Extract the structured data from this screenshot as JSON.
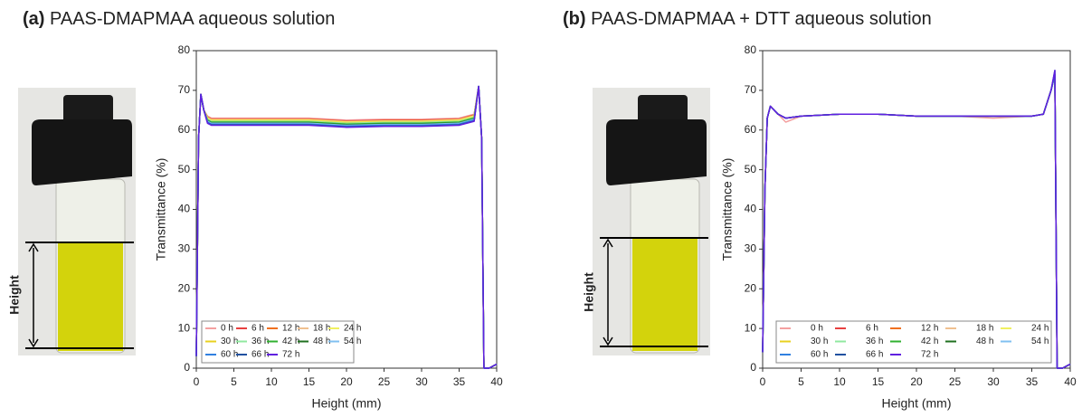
{
  "chart_data": [
    {
      "type": "line",
      "panel_label": "(a)",
      "title": "PAAS-DMAPMAA aqueous solution",
      "photo_label": "Height",
      "x_label": "Height (mm)",
      "y_label": "Transmittance (%)",
      "xlim": [
        0,
        40
      ],
      "ylim": [
        0,
        80
      ],
      "xticks": [
        0,
        5,
        10,
        15,
        20,
        25,
        30,
        35,
        40
      ],
      "yticks": [
        0,
        10,
        20,
        30,
        40,
        50,
        60,
        70,
        80
      ],
      "x": [
        0,
        0.3,
        0.6,
        1,
        1.5,
        2,
        5,
        10,
        15,
        20,
        25,
        30,
        35,
        37,
        37.6,
        38,
        38.3,
        39,
        40
      ],
      "series": [
        {
          "name": "0 h",
          "color": "#f4a0a0",
          "values": [
            3,
            58,
            69,
            65,
            63.5,
            63,
            63,
            63,
            63,
            62.5,
            62.7,
            62.7,
            63,
            64,
            71,
            58,
            0,
            0,
            1
          ]
        },
        {
          "name": "6 h",
          "color": "#e84040",
          "values": [
            3,
            58,
            69,
            65,
            63.3,
            62.8,
            62.8,
            62.8,
            62.8,
            62.3,
            62.5,
            62.5,
            62.8,
            63.8,
            71,
            58,
            0,
            0,
            1
          ]
        },
        {
          "name": "12 h",
          "color": "#f07020",
          "values": [
            3,
            58,
            69,
            65,
            63.2,
            62.7,
            62.7,
            62.7,
            62.7,
            62.2,
            62.4,
            62.4,
            62.7,
            63.7,
            71,
            58,
            0,
            0,
            1
          ]
        },
        {
          "name": "18 h",
          "color": "#f0c090",
          "values": [
            3,
            58,
            69,
            65,
            63.1,
            62.6,
            62.6,
            62.6,
            62.6,
            62.1,
            62.3,
            62.3,
            62.6,
            63.6,
            71,
            58,
            0,
            0,
            1
          ]
        },
        {
          "name": "24 h",
          "color": "#f0f060",
          "values": [
            3,
            58,
            69,
            65,
            63,
            62.5,
            62.5,
            62.5,
            62.5,
            62,
            62.2,
            62.2,
            62.5,
            63.5,
            71,
            58,
            0,
            0,
            1
          ]
        },
        {
          "name": "30 h",
          "color": "#e8d020",
          "values": [
            3,
            58,
            69,
            65,
            62.8,
            62.3,
            62.3,
            62.3,
            62.3,
            61.8,
            62,
            62,
            62.3,
            63.3,
            71,
            58,
            0,
            0,
            1
          ]
        },
        {
          "name": "36 h",
          "color": "#90e8a0",
          "values": [
            3,
            58,
            69,
            65,
            62.7,
            62.2,
            62.2,
            62.2,
            62.2,
            61.7,
            61.9,
            61.9,
            62.2,
            63.2,
            71,
            58,
            0,
            0,
            1
          ]
        },
        {
          "name": "42 h",
          "color": "#30b030",
          "values": [
            3,
            58,
            69,
            65,
            62.5,
            62,
            62,
            62,
            62,
            61.5,
            61.7,
            61.7,
            62,
            63,
            71,
            58,
            0,
            0,
            1
          ]
        },
        {
          "name": "48 h",
          "color": "#207020",
          "values": [
            3,
            58,
            69,
            65,
            62.3,
            61.8,
            61.8,
            61.8,
            61.8,
            61.3,
            61.5,
            61.5,
            61.8,
            62.8,
            71,
            58,
            0,
            0,
            1
          ]
        },
        {
          "name": "54 h",
          "color": "#80c0f0",
          "values": [
            3,
            58,
            69,
            65,
            62.2,
            61.7,
            61.7,
            61.7,
            61.7,
            61.2,
            61.4,
            61.4,
            61.7,
            62.7,
            71,
            58,
            0,
            0,
            1
          ]
        },
        {
          "name": "60 h",
          "color": "#3080e0",
          "values": [
            3,
            58,
            69,
            65,
            62,
            61.5,
            61.5,
            61.5,
            61.5,
            61,
            61.2,
            61.2,
            61.5,
            62.5,
            71,
            58,
            0,
            0,
            1
          ]
        },
        {
          "name": "66 h",
          "color": "#2050a0",
          "values": [
            3,
            58,
            69,
            65,
            61.8,
            61.3,
            61.3,
            61.3,
            61.3,
            60.8,
            61,
            61,
            61.3,
            62.3,
            71,
            58,
            0,
            0,
            1
          ]
        },
        {
          "name": "72 h",
          "color": "#6020e0",
          "values": [
            3,
            58,
            69,
            65,
            61.7,
            61.2,
            61.2,
            61.2,
            61.2,
            60.7,
            60.9,
            60.9,
            61.2,
            62.2,
            71,
            58,
            0,
            0,
            1
          ]
        }
      ]
    },
    {
      "type": "line",
      "panel_label": "(b)",
      "title": "PAAS-DMAPMAA + DTT aqueous solution",
      "photo_label": "Height",
      "x_label": "Height (mm)",
      "y_label": "Transmittance (%)",
      "xlim": [
        0,
        40
      ],
      "ylim": [
        0,
        80
      ],
      "xticks": [
        0,
        5,
        10,
        15,
        20,
        25,
        30,
        35,
        40
      ],
      "yticks": [
        0,
        10,
        20,
        30,
        40,
        50,
        60,
        70,
        80
      ],
      "x": [
        0,
        0.3,
        0.6,
        1,
        1.5,
        2,
        3,
        5,
        10,
        15,
        20,
        25,
        30,
        35,
        36.5,
        37.5,
        38,
        38.3,
        39,
        40
      ],
      "series": [
        {
          "name": "0 h",
          "color": "#f4a0a0",
          "values": [
            4,
            45,
            63,
            66,
            65,
            64,
            62,
            63.5,
            64,
            64,
            63.5,
            63.5,
            63,
            63.5,
            64,
            70,
            74,
            0,
            0,
            1
          ]
        },
        {
          "name": "6 h",
          "color": "#e84040",
          "values": [
            4,
            45,
            63,
            66,
            65,
            64,
            63,
            63.5,
            64,
            64,
            63.5,
            63.5,
            63.5,
            63.5,
            64,
            70,
            74,
            0,
            0,
            1
          ]
        },
        {
          "name": "12 h",
          "color": "#f07020",
          "values": [
            4,
            45,
            63,
            66,
            65,
            64,
            63,
            63.5,
            64,
            64,
            63.5,
            63.5,
            63.5,
            63.5,
            64,
            70,
            74,
            0,
            0,
            1
          ]
        },
        {
          "name": "18 h",
          "color": "#f0c090",
          "values": [
            4,
            45,
            63,
            66,
            65,
            64,
            63,
            63.5,
            64,
            64,
            63.5,
            63.5,
            63.5,
            63.5,
            64,
            70,
            74,
            0,
            0,
            1
          ]
        },
        {
          "name": "24 h",
          "color": "#f0f060",
          "values": [
            4,
            45,
            63,
            66,
            65,
            64,
            63,
            63.5,
            64,
            64,
            63.5,
            63.5,
            63.5,
            63.5,
            64,
            70,
            74,
            0,
            0,
            1
          ]
        },
        {
          "name": "30 h",
          "color": "#e8d020",
          "values": [
            4,
            45,
            63,
            66,
            65,
            64,
            63,
            63.5,
            64,
            64,
            63.5,
            63.5,
            63.5,
            63.5,
            64,
            70,
            74,
            0,
            0,
            1
          ]
        },
        {
          "name": "36 h",
          "color": "#90e8a0",
          "values": [
            4,
            45,
            63,
            66,
            65,
            64,
            63,
            63.5,
            64,
            64,
            63.5,
            63.5,
            63.5,
            63.5,
            64,
            70,
            74,
            0,
            0,
            1
          ]
        },
        {
          "name": "42 h",
          "color": "#30b030",
          "values": [
            4,
            45,
            63,
            66,
            65,
            64,
            63,
            63.5,
            64,
            64,
            63.5,
            63.5,
            63.5,
            63.5,
            64,
            70,
            74,
            0,
            0,
            1
          ]
        },
        {
          "name": "48 h",
          "color": "#207020",
          "values": [
            4,
            45,
            63,
            66,
            65,
            64,
            63,
            63.5,
            64,
            64,
            63.5,
            63.5,
            63.5,
            63.5,
            64,
            70,
            74,
            0,
            0,
            1
          ]
        },
        {
          "name": "54 h",
          "color": "#80c0f0",
          "values": [
            4,
            45,
            63,
            66,
            65,
            64,
            63,
            63.5,
            64,
            64,
            63.5,
            63.5,
            63.5,
            63.5,
            64,
            70,
            74,
            0,
            0,
            1
          ]
        },
        {
          "name": "60 h",
          "color": "#3080e0",
          "values": [
            4,
            45,
            63,
            66,
            65,
            64,
            63,
            63.5,
            64,
            64,
            63.5,
            63.5,
            63.5,
            63.5,
            64,
            70,
            74,
            0,
            0,
            1
          ]
        },
        {
          "name": "66 h",
          "color": "#2050a0",
          "values": [
            4,
            45,
            63,
            66,
            65,
            64,
            63,
            63.5,
            64,
            64,
            63.5,
            63.5,
            63.5,
            63.5,
            64,
            70,
            75,
            0,
            0,
            1
          ]
        },
        {
          "name": "72 h",
          "color": "#6020e0",
          "values": [
            4,
            45,
            63,
            66,
            65,
            64,
            63,
            63.5,
            64,
            64,
            63.5,
            63.5,
            63.5,
            63.5,
            64,
            70,
            75,
            0,
            0,
            1
          ]
        }
      ]
    }
  ]
}
